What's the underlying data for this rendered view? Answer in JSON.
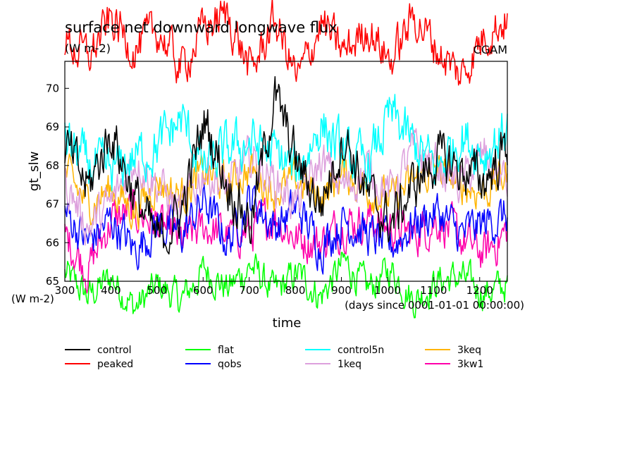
{
  "chart_data": {
    "type": "line",
    "title": "surface net downward longwave flux",
    "units": "(W m-2)",
    "source_label": "CGAM",
    "ylabel": "gt_slw",
    "yunits": "(W m-2)",
    "xlabel": "time",
    "xunits": "(days since 0001-01-01 00:00:00)",
    "xlim": [
      300,
      1260
    ],
    "ylim": [
      65,
      70.7
    ],
    "xticks": [
      300,
      400,
      500,
      600,
      700,
      800,
      900,
      1000,
      1100,
      1200
    ],
    "xtick_labels": [
      "300",
      "400",
      "500",
      "600",
      "700",
      "800",
      "900",
      "1000",
      "1100",
      "1200"
    ],
    "yticks": [
      65,
      66,
      67,
      68,
      69,
      70
    ],
    "ytick_labels": [
      "65",
      "66",
      "67",
      "68",
      "69",
      "70"
    ],
    "grid": false,
    "legend_placement": "bottom",
    "sample_step_days": 2,
    "series": [
      {
        "name": "control",
        "color": "#000000",
        "mean": 67.6,
        "amp": 1.2,
        "anchors": [
          68.5,
          67.4,
          68.9,
          67.2,
          66.0,
          66.8,
          69.2,
          67.5,
          66.5,
          69.8,
          68.0,
          67.0,
          68.8,
          67.2,
          66.5,
          67.5,
          68.2,
          67.9,
          67.6,
          68.5
        ]
      },
      {
        "name": "peaked",
        "color": "#ff0000",
        "mean": 71.4,
        "amp": 1.0,
        "anchors": [
          71.2,
          70.8,
          71.8,
          71.0,
          71.5,
          70.5,
          71.6,
          71.9,
          70.4,
          71.8,
          70.2,
          71.7,
          70.9,
          71.6,
          70.7,
          71.9,
          71.0,
          70.3,
          71.4,
          71.8
        ]
      },
      {
        "name": "flat",
        "color": "#00ff00",
        "mean": 65.0,
        "amp": 0.8,
        "anchors": [
          65.2,
          64.6,
          65.1,
          64.3,
          64.9,
          64.5,
          65.3,
          64.8,
          65.4,
          64.7,
          65.2,
          64.6,
          65.5,
          64.8,
          65.3,
          64.5,
          65.0,
          65.1,
          64.7,
          64.9
        ]
      },
      {
        "name": "qobs",
        "color": "#0000ff",
        "mean": 66.7,
        "amp": 1.0,
        "anchors": [
          66.8,
          66.0,
          66.6,
          65.8,
          66.5,
          66.2,
          67.1,
          66.0,
          67.2,
          66.4,
          66.9,
          65.9,
          66.6,
          66.2,
          65.9,
          66.5,
          66.8,
          66.2,
          66.5,
          66.7
        ]
      },
      {
        "name": "control5n",
        "color": "#00ffff",
        "mean": 68.3,
        "amp": 1.2,
        "anchors": [
          68.6,
          68.0,
          67.8,
          68.2,
          68.5,
          69.2,
          67.9,
          68.4,
          68.6,
          68.3,
          67.8,
          69.1,
          68.2,
          68.0,
          69.3,
          68.5,
          67.9,
          68.8,
          68.3,
          69.0
        ]
      },
      {
        "name": "1keq",
        "color": "#dda0dd",
        "mean": 67.7,
        "amp": 1.0,
        "anchors": [
          67.6,
          66.4,
          67.0,
          68.2,
          67.5,
          66.8,
          67.9,
          67.4,
          68.2,
          67.6,
          67.0,
          68.1,
          67.4,
          67.9,
          67.3,
          68.4,
          68.0,
          67.5,
          68.3,
          67.5
        ]
      },
      {
        "name": "3keq",
        "color": "#ffb400",
        "mean": 67.6,
        "amp": 0.9,
        "anchors": [
          67.8,
          67.0,
          67.4,
          66.8,
          67.6,
          67.2,
          67.8,
          67.5,
          67.9,
          67.3,
          67.6,
          67.2,
          67.8,
          67.4,
          67.1,
          67.6,
          67.9,
          67.5,
          67.3,
          67.8
        ]
      },
      {
        "name": "3kw1",
        "color": "#ff00aa",
        "mean": 66.4,
        "amp": 1.0,
        "anchors": [
          66.2,
          65.3,
          66.6,
          66.8,
          66.5,
          66.0,
          66.4,
          66.2,
          66.3,
          66.7,
          66.1,
          66.0,
          66.5,
          66.6,
          66.4,
          66.2,
          66.6,
          66.1,
          65.7,
          66.3
        ]
      }
    ]
  }
}
